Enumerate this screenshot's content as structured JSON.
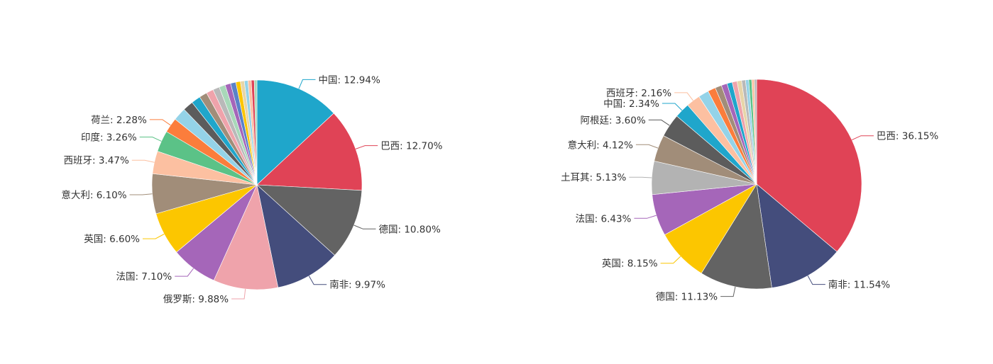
{
  "chart_data": [
    {
      "type": "pie",
      "title": "",
      "labeled": [
        {
          "label": "中国: 12.94%",
          "value": 12.94,
          "color": "#1fa6cb"
        },
        {
          "label": "巴西: 12.70%",
          "value": 12.7,
          "color": "#e04356"
        },
        {
          "label": "德国: 10.80%",
          "value": 10.8,
          "color": "#636363"
        },
        {
          "label": "南非: 9.97%",
          "value": 9.97,
          "color": "#444d7c"
        },
        {
          "label": "俄罗斯: 9.88%",
          "value": 9.88,
          "color": "#efa3ab"
        },
        {
          "label": "法国: 7.10%",
          "value": 7.1,
          "color": "#a566b9"
        },
        {
          "label": "英国: 6.60%",
          "value": 6.6,
          "color": "#fcc600"
        },
        {
          "label": "意大利: 6.10%",
          "value": 6.1,
          "color": "#a18d79"
        },
        {
          "label": "西班牙: 3.47%",
          "value": 3.47,
          "color": "#fcc0a1"
        },
        {
          "label": "印度: 3.26%",
          "value": 3.26,
          "color": "#5bc287"
        },
        {
          "label": "荷兰: 2.28%",
          "value": 2.28,
          "color": "#fb7d3c"
        }
      ],
      "minor_slices": [
        {
          "value": 2.0,
          "color": "#94d3e8"
        },
        {
          "value": 1.6,
          "color": "#5c5c5c"
        },
        {
          "value": 1.4,
          "color": "#1fa6cb"
        },
        {
          "value": 1.2,
          "color": "#a18d79"
        },
        {
          "value": 1.1,
          "color": "#efa3ab"
        },
        {
          "value": 1.0,
          "color": "#b9b9b9"
        },
        {
          "value": 0.95,
          "color": "#a8d8b9"
        },
        {
          "value": 0.85,
          "color": "#a566b9"
        },
        {
          "value": 0.8,
          "color": "#5b82c8"
        },
        {
          "value": 0.7,
          "color": "#fcc600"
        },
        {
          "value": 0.6,
          "color": "#e7d5a8"
        },
        {
          "value": 0.55,
          "color": "#94d3e8"
        },
        {
          "value": 0.5,
          "color": "#fcc0a1"
        },
        {
          "value": 0.45,
          "color": "#e04356"
        },
        {
          "value": 0.41,
          "color": "#a8d8b9"
        }
      ]
    },
    {
      "type": "pie",
      "title": "",
      "labeled": [
        {
          "label": "巴西: 36.15%",
          "value": 36.15,
          "color": "#e04356"
        },
        {
          "label": "南非: 11.54%",
          "value": 11.54,
          "color": "#444d7c"
        },
        {
          "label": "德国: 11.13%",
          "value": 11.13,
          "color": "#636363"
        },
        {
          "label": "英国: 8.15%",
          "value": 8.15,
          "color": "#fcc600"
        },
        {
          "label": "法国: 6.43%",
          "value": 6.43,
          "color": "#a566b9"
        },
        {
          "label": "土耳其: 5.13%",
          "value": 5.13,
          "color": "#b3b3b3"
        },
        {
          "label": "意大利: 4.12%",
          "value": 4.12,
          "color": "#a18d79"
        },
        {
          "label": "阿根廷: 3.60%",
          "value": 3.6,
          "color": "#5c5c5c"
        },
        {
          "label": "中国: 2.34%",
          "value": 2.34,
          "color": "#1fa6cb"
        },
        {
          "label": "西班牙: 2.16%",
          "value": 2.16,
          "color": "#fcc0a1"
        }
      ],
      "minor_slices": [
        {
          "value": 1.6,
          "color": "#94d3e8"
        },
        {
          "value": 1.2,
          "color": "#fb7d3c"
        },
        {
          "value": 1.0,
          "color": "#a18d79"
        },
        {
          "value": 0.9,
          "color": "#a566b9"
        },
        {
          "value": 0.8,
          "color": "#1fa6cb"
        },
        {
          "value": 0.75,
          "color": "#efa3ab"
        },
        {
          "value": 0.7,
          "color": "#e7d5a8"
        },
        {
          "value": 0.6,
          "color": "#b9b9b9"
        },
        {
          "value": 0.5,
          "color": "#94d3e8"
        },
        {
          "value": 0.45,
          "color": "#5bc287"
        },
        {
          "value": 0.4,
          "color": "#fcc0a1"
        },
        {
          "value": 0.35,
          "color": "#b9b9b9"
        }
      ]
    }
  ]
}
